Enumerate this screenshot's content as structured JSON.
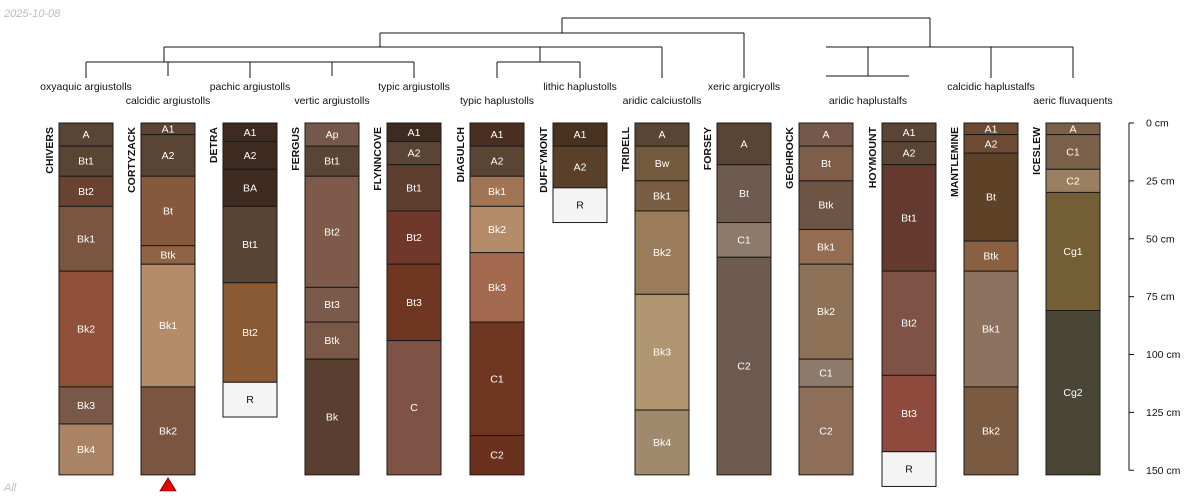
{
  "date_stamp": "2025-10-08",
  "footer_note": "All",
  "axis_unit": "cm",
  "depth_axis": {
    "ticks": [
      0,
      25,
      50,
      75,
      100,
      125,
      150
    ],
    "max_depth": 150
  },
  "taxa": [
    "oxyaquic argiustolls",
    "calcidic argiustolls",
    "pachic argiustolls",
    "vertic argiustolls",
    "typic argiustolls",
    "typic haplustolls",
    "lithic haplustolls",
    "aridic calciustolls",
    "xeric argicryolls",
    "aridic haplustalfs",
    "calcidic haplustalfs",
    "aeric fluvaquents"
  ],
  "profiles": [
    {
      "name": "CHIVERS",
      "horizons": [
        {
          "name": "A",
          "top": 0,
          "bottom": 10,
          "color": "#5a4434"
        },
        {
          "name": "Bt1",
          "top": 10,
          "bottom": 23,
          "color": "#5a4434"
        },
        {
          "name": "Bt2",
          "top": 23,
          "bottom": 36,
          "color": "#6a4232"
        },
        {
          "name": "Bk1",
          "top": 36,
          "bottom": 64,
          "color": "#7a5640"
        },
        {
          "name": "Bk2",
          "top": 64,
          "bottom": 114,
          "color": "#8e5038"
        },
        {
          "name": "Bk3",
          "top": 114,
          "bottom": 130,
          "color": "#7a5848"
        },
        {
          "name": "Bk4",
          "top": 130,
          "bottom": 152,
          "color": "#aa8264"
        }
      ]
    },
    {
      "name": "CORTYZACK",
      "marker": true,
      "horizons": [
        {
          "name": "A1",
          "top": 0,
          "bottom": 5,
          "color": "#5a4434"
        },
        {
          "name": "A2",
          "top": 5,
          "bottom": 23,
          "color": "#5a4434"
        },
        {
          "name": "Bt",
          "top": 23,
          "bottom": 53,
          "color": "#86583e"
        },
        {
          "name": "Btk",
          "top": 53,
          "bottom": 61,
          "color": "#8e6444"
        },
        {
          "name": "Bk1",
          "top": 61,
          "bottom": 114,
          "color": "#b48c6a"
        },
        {
          "name": "Bk2",
          "top": 114,
          "bottom": 152,
          "color": "#7a5640"
        }
      ]
    },
    {
      "name": "DETRA",
      "horizons": [
        {
          "name": "A1",
          "top": 0,
          "bottom": 8,
          "color": "#3e2a1e"
        },
        {
          "name": "A2",
          "top": 8,
          "bottom": 20,
          "color": "#3e2a1e"
        },
        {
          "name": "BA",
          "top": 20,
          "bottom": 36,
          "color": "#3e2a1e"
        },
        {
          "name": "Bt1",
          "top": 36,
          "bottom": 69,
          "color": "#574434"
        },
        {
          "name": "Bt2",
          "top": 69,
          "bottom": 112,
          "color": "#8a5a34"
        },
        {
          "name": "R",
          "top": 112,
          "bottom": 127,
          "color": "#f4f4f4"
        }
      ]
    },
    {
      "name": "FERGUS",
      "horizons": [
        {
          "name": "Ap",
          "top": 0,
          "bottom": 10,
          "color": "#76584a"
        },
        {
          "name": "Bt1",
          "top": 10,
          "bottom": 23,
          "color": "#5a4434"
        },
        {
          "name": "Bt2",
          "top": 23,
          "bottom": 71,
          "color": "#7e5a4a"
        },
        {
          "name": "Bt3",
          "top": 71,
          "bottom": 86,
          "color": "#7a5a4a"
        },
        {
          "name": "Btk",
          "top": 86,
          "bottom": 102,
          "color": "#7a5848"
        },
        {
          "name": "Bk",
          "top": 102,
          "bottom": 152,
          "color": "#5a3e30"
        }
      ]
    },
    {
      "name": "FLYNNCOVE",
      "horizons": [
        {
          "name": "A1",
          "top": 0,
          "bottom": 8,
          "color": "#3e2a1e"
        },
        {
          "name": "A2",
          "top": 8,
          "bottom": 18,
          "color": "#5a4434"
        },
        {
          "name": "Bt1",
          "top": 18,
          "bottom": 38,
          "color": "#5e3e2e"
        },
        {
          "name": "Bt2",
          "top": 38,
          "bottom": 61,
          "color": "#70382a"
        },
        {
          "name": "Bt3",
          "top": 61,
          "bottom": 94,
          "color": "#6e3620"
        },
        {
          "name": "C",
          "top": 94,
          "bottom": 152,
          "color": "#7e5244"
        }
      ]
    },
    {
      "name": "DIAGULCH",
      "horizons": [
        {
          "name": "A1",
          "top": 0,
          "bottom": 10,
          "color": "#4a2e20"
        },
        {
          "name": "A2",
          "top": 10,
          "bottom": 23,
          "color": "#5a4434"
        },
        {
          "name": "Bk1",
          "top": 23,
          "bottom": 36,
          "color": "#a27456"
        },
        {
          "name": "Bk2",
          "top": 36,
          "bottom": 56,
          "color": "#b48c6a"
        },
        {
          "name": "Bk3",
          "top": 56,
          "bottom": 86,
          "color": "#a46a50"
        },
        {
          "name": "C1",
          "top": 86,
          "bottom": 135,
          "color": "#6e3620"
        },
        {
          "name": "C2",
          "top": 135,
          "bottom": 152,
          "color": "#6a321e"
        }
      ]
    },
    {
      "name": "DUFFYMONT",
      "horizons": [
        {
          "name": "A1",
          "top": 0,
          "bottom": 10,
          "color": "#4a3220"
        },
        {
          "name": "A2",
          "top": 10,
          "bottom": 28,
          "color": "#5a4028"
        },
        {
          "name": "R",
          "top": 28,
          "bottom": 43,
          "color": "#f4f4f4"
        }
      ]
    },
    {
      "name": "TRIDELL",
      "horizons": [
        {
          "name": "A",
          "top": 0,
          "bottom": 10,
          "color": "#5a4434"
        },
        {
          "name": "Bw",
          "top": 10,
          "bottom": 25,
          "color": "#735a3e"
        },
        {
          "name": "Bk1",
          "top": 25,
          "bottom": 38,
          "color": "#7a5e44"
        },
        {
          "name": "Bk2",
          "top": 38,
          "bottom": 74,
          "color": "#9a7c5a"
        },
        {
          "name": "Bk3",
          "top": 74,
          "bottom": 124,
          "color": "#b09670"
        },
        {
          "name": "Bk4",
          "top": 124,
          "bottom": 152,
          "color": "#a08a6e"
        }
      ]
    },
    {
      "name": "FORSEY",
      "horizons": [
        {
          "name": "A",
          "top": 0,
          "bottom": 18,
          "color": "#5a4434"
        },
        {
          "name": "Bt",
          "top": 18,
          "bottom": 43,
          "color": "#6e5a4e"
        },
        {
          "name": "C1",
          "top": 43,
          "bottom": 58,
          "color": "#8e7a6a"
        },
        {
          "name": "C2",
          "top": 58,
          "bottom": 152,
          "color": "#6e5a4e"
        }
      ]
    },
    {
      "name": "GEOHROCK",
      "horizons": [
        {
          "name": "A",
          "top": 0,
          "bottom": 10,
          "color": "#76584a"
        },
        {
          "name": "Bt",
          "top": 10,
          "bottom": 25,
          "color": "#7e5e48"
        },
        {
          "name": "Btk",
          "top": 25,
          "bottom": 46,
          "color": "#6e5444"
        },
        {
          "name": "Bk1",
          "top": 46,
          "bottom": 61,
          "color": "#946c52"
        },
        {
          "name": "Bk2",
          "top": 61,
          "bottom": 102,
          "color": "#8e7258"
        },
        {
          "name": "C1",
          "top": 102,
          "bottom": 114,
          "color": "#8e7a6a"
        },
        {
          "name": "C2",
          "top": 114,
          "bottom": 152,
          "color": "#8e6e58"
        }
      ]
    },
    {
      "name": "HOYMOUNT",
      "horizons": [
        {
          "name": "A1",
          "top": 0,
          "bottom": 8,
          "color": "#5a4434"
        },
        {
          "name": "A2",
          "top": 8,
          "bottom": 18,
          "color": "#5a4434"
        },
        {
          "name": "Bt1",
          "top": 18,
          "bottom": 64,
          "color": "#643a2e"
        },
        {
          "name": "Bt2",
          "top": 64,
          "bottom": 109,
          "color": "#7e5244"
        },
        {
          "name": "Bt3",
          "top": 109,
          "bottom": 142,
          "color": "#8e4a3c"
        },
        {
          "name": "R",
          "top": 142,
          "bottom": 157,
          "color": "#f4f4f4"
        }
      ]
    },
    {
      "name": "MANTLEMINE",
      "horizons": [
        {
          "name": "A1",
          "top": 0,
          "bottom": 5,
          "color": "#6e4a32"
        },
        {
          "name": "A2",
          "top": 5,
          "bottom": 13,
          "color": "#6e4a32"
        },
        {
          "name": "Bt",
          "top": 13,
          "bottom": 51,
          "color": "#5e4228"
        },
        {
          "name": "Btk",
          "top": 51,
          "bottom": 64,
          "color": "#8a6040"
        },
        {
          "name": "Bk1",
          "top": 64,
          "bottom": 114,
          "color": "#8e7260"
        },
        {
          "name": "Bk2",
          "top": 114,
          "bottom": 152,
          "color": "#7a5a40"
        }
      ]
    },
    {
      "name": "ICESLEW",
      "horizons": [
        {
          "name": "A",
          "top": 0,
          "bottom": 5,
          "color": "#7a6048"
        },
        {
          "name": "C1",
          "top": 5,
          "bottom": 20,
          "color": "#7a6048"
        },
        {
          "name": "C2",
          "top": 20,
          "bottom": 30,
          "color": "#9a8060"
        },
        {
          "name": "Cg1",
          "top": 30,
          "bottom": 81,
          "color": "#745e36"
        },
        {
          "name": "Cg2",
          "top": 81,
          "bottom": 152,
          "color": "#4a4636"
        }
      ]
    }
  ]
}
